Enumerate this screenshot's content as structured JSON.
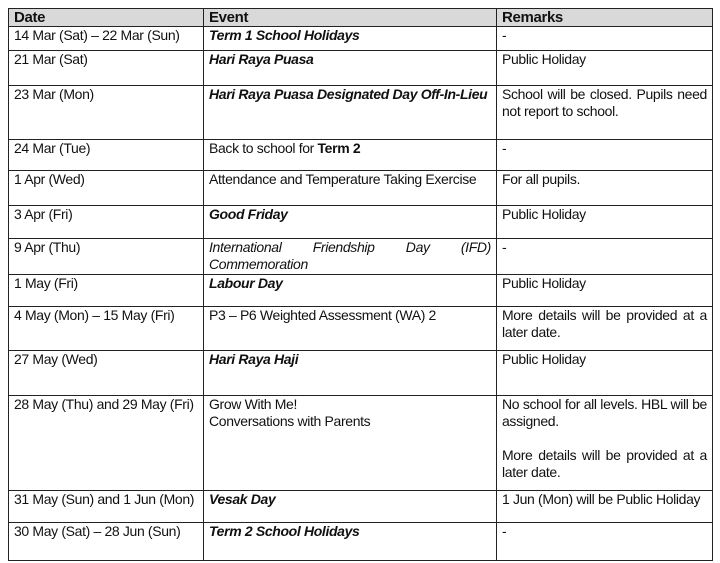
{
  "headers": [
    "Date",
    "Event",
    "Remarks"
  ],
  "rows": [
    {
      "date": "14 Mar (Sat) – 22 Mar (Sun)",
      "event": [
        {
          "text": "Term 1 School Holidays",
          "style": "bi"
        }
      ],
      "remarks": [
        "-"
      ]
    },
    {
      "date": "21 Mar (Sat)",
      "event": [
        {
          "text": "Hari Raya Puasa",
          "style": "bi"
        }
      ],
      "remarks": [
        "Public Holiday"
      ]
    },
    {
      "date": "23 Mar (Mon)",
      "event": [
        {
          "text": "Hari Raya Puasa Designated Day Off-In-Lieu",
          "style": "bi"
        }
      ],
      "remarks": [
        "School will be closed. Pupils need not report to school."
      ]
    },
    {
      "date": "24 Mar (Tue)",
      "event": [
        {
          "text": "Back to school for ",
          "style": ""
        },
        {
          "text": "Term 2",
          "style": "b"
        }
      ],
      "remarks": [
        "-"
      ]
    },
    {
      "date": "1 Apr (Wed)",
      "event": [
        {
          "text": "Attendance and Temperature Taking Exercise",
          "style": ""
        }
      ],
      "remarks": [
        "For all pupils."
      ]
    },
    {
      "date": "3 Apr (Fri)",
      "event": [
        {
          "text": "Good Friday",
          "style": "bi"
        }
      ],
      "remarks": [
        "Public Holiday"
      ]
    },
    {
      "date": "9 Apr (Thu)",
      "event": [
        {
          "text": "International Friendship Day (IFD) Commemoration",
          "style": "i"
        }
      ],
      "remarks": [
        "-"
      ]
    },
    {
      "date": "1 May (Fri)",
      "event": [
        {
          "text": "Labour Day",
          "style": "bi"
        }
      ],
      "remarks": [
        "Public Holiday"
      ]
    },
    {
      "date": "4 May (Mon) – 15 May (Fri)",
      "event": [
        {
          "text": "P3 – P6 Weighted Assessment (WA) 2",
          "style": ""
        }
      ],
      "remarks": [
        "More details will be provided at a later date."
      ]
    },
    {
      "date": "27 May (Wed)",
      "event": [
        {
          "text": "Hari Raya Haji",
          "style": "bi"
        }
      ],
      "remarks": [
        "Public Holiday"
      ]
    },
    {
      "date": "28 May (Thu) and 29 May (Fri)",
      "event": [
        {
          "text": "Grow With Me!",
          "style": "line"
        },
        {
          "text": "Conversations with Parents",
          "style": "line"
        }
      ],
      "remarks": [
        "No school for all levels. HBL will be assigned.",
        "More details will be provided at a later date."
      ]
    },
    {
      "date": "31 May (Sun) and 1 Jun (Mon)",
      "event": [
        {
          "text": "Vesak Day",
          "style": "bi"
        }
      ],
      "remarks": [
        "1 Jun (Mon) will be Public Holiday"
      ]
    },
    {
      "date": "30 May (Sat) – 28 Jun (Sun)",
      "event": [
        {
          "text": "Term 2 School Holidays",
          "style": "bi"
        }
      ],
      "remarks": [
        "-"
      ]
    }
  ]
}
